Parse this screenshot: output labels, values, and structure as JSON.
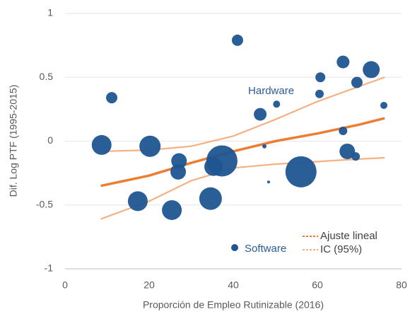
{
  "chart_data": {
    "type": "bubble",
    "xlabel": "Proporción de Empleo Rutinizable (2016)",
    "ylabel": "Dif. Log PTF (1995-2015)",
    "xlim": [
      0,
      80
    ],
    "xticks": [
      0,
      20,
      40,
      60,
      80
    ],
    "ylim": [
      -1,
      1
    ],
    "yticks": [
      1,
      0.5,
      0,
      -0.5,
      -1
    ],
    "grid": true,
    "legend": "bottom-right",
    "annotations": [
      {
        "text": "Hardware",
        "x": 49,
        "y": 0.39
      }
    ],
    "series": [
      {
        "name": "Software",
        "type": "bubble",
        "color": "#1f5591",
        "x": [
          8.7,
          11.1,
          20.2,
          17.3,
          25.4,
          27.1,
          26.9,
          34.6,
          35.3,
          37.3,
          41.0,
          46.4,
          47.4,
          48.4,
          50.3,
          56.1,
          60.5,
          60.7,
          66.1,
          66.1,
          67.1,
          69.1,
          69.4,
          72.8,
          75.8
        ],
        "values": [
          -0.03,
          0.34,
          -0.04,
          -0.47,
          -0.54,
          -0.155,
          -0.24,
          -0.45,
          -0.2,
          -0.155,
          0.79,
          0.21,
          -0.04,
          -0.32,
          0.29,
          -0.24,
          0.37,
          0.5,
          0.62,
          0.08,
          -0.08,
          -0.12,
          0.46,
          0.56,
          0.28
        ],
        "sizes": [
          14,
          8,
          15,
          14,
          14,
          11,
          11,
          16,
          13,
          22,
          8,
          9,
          3,
          2,
          5,
          22,
          6,
          7,
          9,
          6,
          11,
          6,
          8,
          12,
          5
        ]
      },
      {
        "name": "Ajuste lineal",
        "type": "line",
        "color": "#ed7d31",
        "x": [
          8.5,
          20,
          30,
          40,
          50,
          60,
          70,
          76
        ],
        "values": [
          -0.35,
          -0.27,
          -0.17,
          -0.08,
          0,
          0.06,
          0.13,
          0.18
        ]
      },
      {
        "name": "IC (95%)",
        "type": "band",
        "color": "#f4b183",
        "x": [
          8.5,
          20,
          30,
          40,
          50,
          60,
          70,
          76
        ],
        "upper": [
          -0.08,
          -0.07,
          -0.04,
          0.04,
          0.17,
          0.31,
          0.43,
          0.5
        ],
        "lower": [
          -0.61,
          -0.47,
          -0.31,
          -0.21,
          -0.18,
          -0.16,
          -0.14,
          -0.13
        ]
      }
    ]
  }
}
